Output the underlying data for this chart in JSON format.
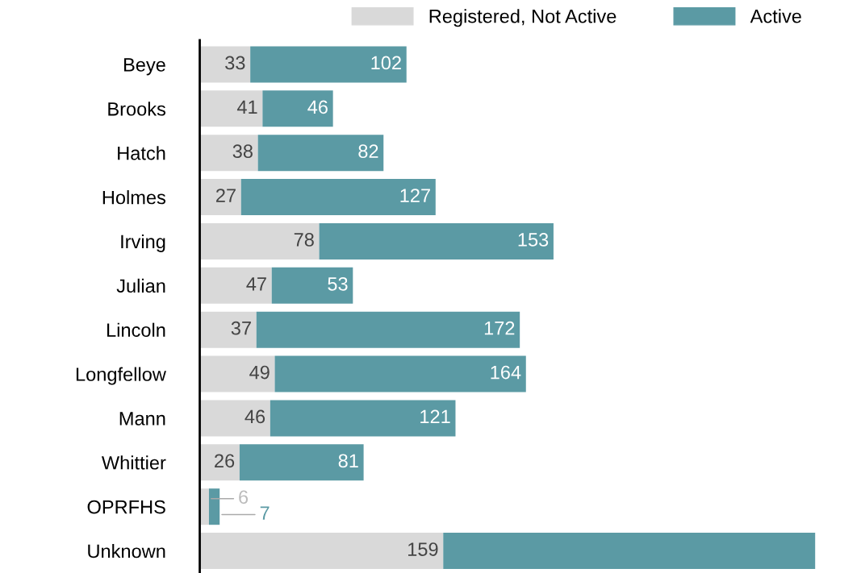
{
  "chart_data": {
    "type": "bar",
    "orientation": "horizontal",
    "stacked": true,
    "categories": [
      "Beye",
      "Brooks",
      "Hatch",
      "Holmes",
      "Irving",
      "Julian",
      "Lincoln",
      "Longfellow",
      "Mann",
      "Whittier",
      "OPRFHS",
      "Unknown"
    ],
    "series": [
      {
        "name": "Registered, Not Active",
        "color": "#d9d9d9",
        "values": [
          33,
          41,
          38,
          27,
          78,
          47,
          37,
          49,
          46,
          26,
          6,
          159
        ],
        "value_labels": [
          "33",
          "41",
          "38",
          "27",
          "78",
          "47",
          "37",
          "49",
          "46",
          "26",
          "6",
          "159"
        ]
      },
      {
        "name": "Active",
        "color": "#5b9aa4",
        "values": [
          102,
          46,
          82,
          127,
          153,
          53,
          172,
          164,
          121,
          81,
          7,
          243
        ],
        "value_labels": [
          "102",
          "46",
          "82",
          "127",
          "153",
          "53",
          "172",
          "164",
          "121",
          "81",
          "7",
          null
        ]
      }
    ],
    "legend": "top right"
  }
}
